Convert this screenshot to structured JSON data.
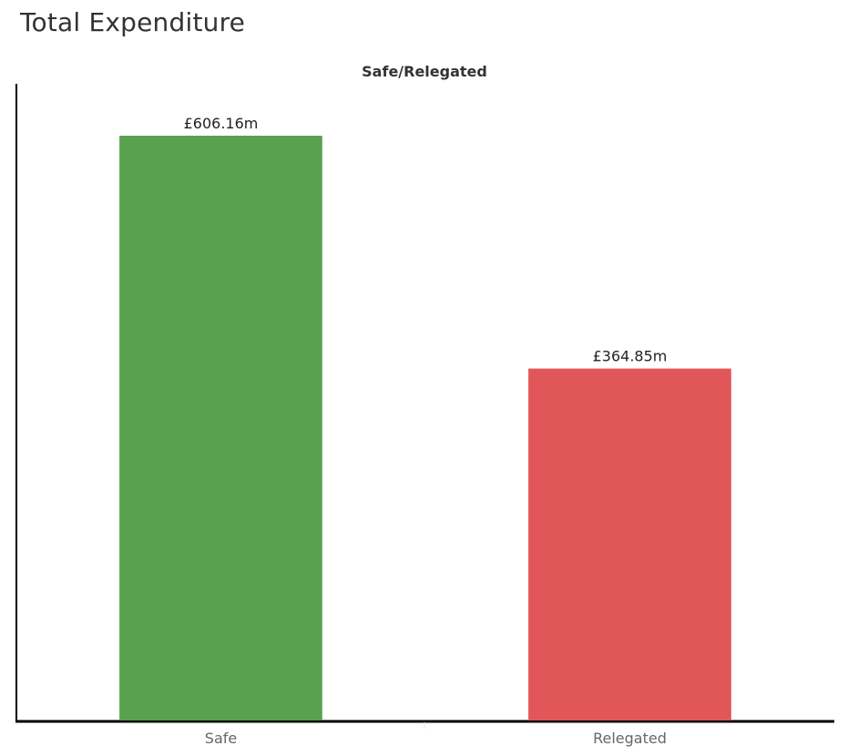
{
  "page": {
    "title": "Total Expenditure"
  },
  "chart_data": {
    "type": "bar",
    "title": "Safe/Relegated",
    "categories": [
      "Safe",
      "Relegated"
    ],
    "values": [
      606.16,
      364.85
    ],
    "data_labels": [
      "£606.16m",
      "£364.85m"
    ],
    "colors": [
      "#59a14f",
      "#e15759"
    ],
    "ylim": [
      0,
      660
    ],
    "xlabel": "",
    "ylabel": "",
    "grid": false,
    "legend": "none"
  }
}
